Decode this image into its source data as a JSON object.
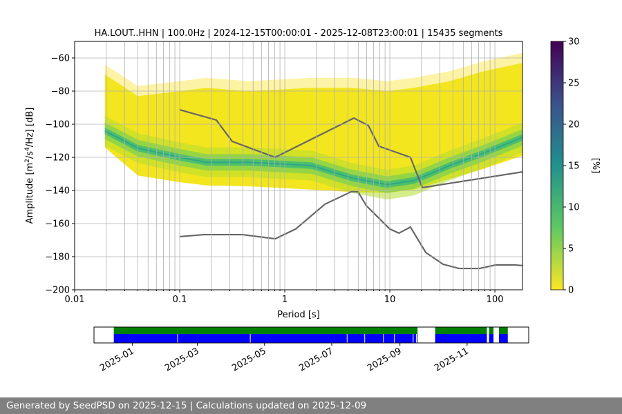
{
  "chart_data": {
    "type": "heatmap",
    "title": "HA.LOUT..HHN | 100.0Hz | 2024-12-15T00:00:01 - 2025-12-08T23:00:01 | 15435 segments",
    "xlabel": "Period [s]",
    "ylabel": "Amplitude [m²/s⁴/Hz] [dB]",
    "xscale": "log",
    "xlim": [
      0.01,
      183
    ],
    "ylim": [
      -200,
      -50
    ],
    "xticks": [
      {
        "v": 0.01,
        "label": "0.01"
      },
      {
        "v": 0.1,
        "label": "0.1"
      },
      {
        "v": 1,
        "label": "1"
      },
      {
        "v": 10,
        "label": "10"
      },
      {
        "v": 100,
        "label": "100"
      }
    ],
    "yticks": [
      {
        "v": -60,
        "label": "−60"
      },
      {
        "v": -80,
        "label": "−80"
      },
      {
        "v": -100,
        "label": "−100"
      },
      {
        "v": -120,
        "label": "−120"
      },
      {
        "v": -140,
        "label": "−140"
      },
      {
        "v": -160,
        "label": "−160"
      },
      {
        "v": -180,
        "label": "−180"
      },
      {
        "v": -200,
        "label": "−200"
      }
    ],
    "grid": true,
    "density": {
      "periods": [
        0.0194,
        0.04,
        0.1,
        0.18,
        0.45,
        1.8,
        4.4,
        9.4,
        17,
        37,
        78,
        183
      ],
      "upper_db": [
        -70,
        -83,
        -80,
        -78,
        -80,
        -78,
        -78,
        -80,
        -78,
        -74,
        -68,
        -63
      ],
      "lower_db": [
        -114,
        -131,
        -135,
        -137,
        -137.5,
        -139.5,
        -141,
        -141.5,
        -139.5,
        -133,
        -127,
        -119
      ],
      "mode_db": [
        -104,
        -114.5,
        -120,
        -123,
        -123,
        -125,
        -132.5,
        -136.5,
        -134,
        -125,
        -117.5,
        -108
      ]
    },
    "noise_models": [
      {
        "name": "NHNM",
        "color": "#666666",
        "x": [
          0.1,
          0.223,
          0.316,
          0.81,
          4.55,
          6.25,
          7.85,
          15.7,
          20.4,
          183
        ],
        "y": [
          -91.3,
          -97.5,
          -110.4,
          -120,
          -96.3,
          -100.8,
          -113.3,
          -120,
          -138.3,
          -128.8
        ]
      },
      {
        "name": "NLNM",
        "color": "#666666",
        "x": [
          0.1,
          0.17,
          0.397,
          0.81,
          1.27,
          2.41,
          4.28,
          4.98,
          5.97,
          10,
          12.2,
          15.7,
          22,
          32.1,
          45.5,
          71.6,
          101.6,
          155,
          183
        ],
        "y": [
          -167.9,
          -166.7,
          -166.7,
          -169.2,
          -163.3,
          -148.3,
          -140.8,
          -140.8,
          -149.2,
          -163.3,
          -165.8,
          -162.1,
          -177.5,
          -184.6,
          -187.1,
          -187.1,
          -185,
          -185,
          -185.4
        ]
      }
    ],
    "colorbar": {
      "label": "[%]",
      "range": [
        0,
        30
      ],
      "ticks": [
        {
          "v": 0,
          "label": "0"
        },
        {
          "v": 5,
          "label": "5"
        },
        {
          "v": 10,
          "label": "10"
        },
        {
          "v": 15,
          "label": "15"
        },
        {
          "v": 20,
          "label": "20"
        },
        {
          "v": 25,
          "label": "25"
        },
        {
          "v": 30,
          "label": "30"
        }
      ],
      "colors": [
        "#fde725",
        "#5ec962",
        "#21918c",
        "#3b528b",
        "#440154"
      ]
    },
    "coverage": {
      "range": [
        "2024-11-27",
        "2025-12-27"
      ],
      "data_color": "#008000",
      "used_color": "#0000ff",
      "green_segments": [
        [
          "2024-12-15",
          "2025-09-17"
        ],
        [
          "2025-10-03",
          "2025-11-19"
        ],
        [
          "2025-11-21",
          "2025-11-25"
        ],
        [
          "2025-11-30",
          "2025-12-08"
        ]
      ],
      "blue_gaps": [
        "2025-02-11",
        "2025-04-18",
        "2025-07-15",
        "2025-07-31",
        "2025-08-17",
        "2025-08-27",
        "2025-09-13",
        "2025-09-16"
      ],
      "ticks": [
        {
          "date": "2025-01-01",
          "label": "2025-01"
        },
        {
          "date": "2025-03-01",
          "label": "2025-03"
        },
        {
          "date": "2025-05-01",
          "label": "2025-05"
        },
        {
          "date": "2025-07-01",
          "label": "2025-07"
        },
        {
          "date": "2025-09-01",
          "label": "2025-09"
        },
        {
          "date": "2025-11-01",
          "label": "2025-11"
        }
      ]
    }
  },
  "footer": "Generated by SeedPSD on 2025-12-15 | Calculations updated on 2025-12-09"
}
